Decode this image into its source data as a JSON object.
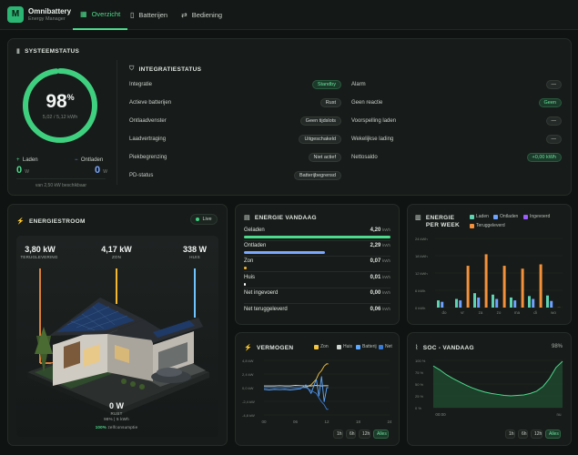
{
  "app": {
    "title": "Omnibattery",
    "subtitle": "Energy Manager",
    "logo_letter": "M"
  },
  "tabs": [
    {
      "label": "Overzicht",
      "icon": "grid-icon",
      "active": true
    },
    {
      "label": "Batterijen",
      "icon": "battery-icon",
      "active": false
    },
    {
      "label": "Bediening",
      "icon": "sliders-icon",
      "active": false
    }
  ],
  "system": {
    "title": "SYSTEEMSTATUS",
    "percent": "98",
    "percent_unit": "%",
    "soc_fraction": 0.98,
    "kwh": "5,02 / 5,12 kWh",
    "charge_label": "Laden",
    "charge_value": "0",
    "charge_unit": "W",
    "discharge_label": "Ontladen",
    "discharge_value": "0",
    "discharge_unit": "W",
    "limit_text": "van 2,50 kW beschikbaar",
    "integration_title": "INTEGRATIESTATUS",
    "left_rows": [
      {
        "label": "Integratie",
        "value": "Standby",
        "style": "green"
      },
      {
        "label": "Actieve batterijen",
        "value": "Rust",
        "style": "grey"
      },
      {
        "label": "Ontlaadvenster",
        "value": "Geen tijdslots",
        "style": "grey"
      },
      {
        "label": "Laadvertraging",
        "value": "Uitgeschakeld",
        "style": "grey"
      },
      {
        "label": "Piekbegrenzing",
        "value": "Niet actief",
        "style": "grey"
      },
      {
        "label": "PD-status",
        "value": "Batterijbegrensd",
        "style": "grey"
      }
    ],
    "right_rows": [
      {
        "label": "Alarm",
        "value": "—",
        "style": "grey"
      },
      {
        "label": "Geen reactie",
        "value": "Geen",
        "style": "green"
      },
      {
        "label": "Voorspelling laden",
        "value": "—",
        "style": "grey"
      },
      {
        "label": "Wekelijkse lading",
        "value": "—",
        "style": "grey"
      },
      {
        "label": "Nettosaldo",
        "value": "+0,00 kWh",
        "style": "green"
      }
    ]
  },
  "flow": {
    "title": "ENERGIESTROOM",
    "live": "Live",
    "grid_value": "3,80 kW",
    "grid_label": "TERUGLEVERING",
    "solar_value": "4,17 kW",
    "solar_label": "ZON",
    "house_value": "338 W",
    "house_label": "HUIS",
    "battery_value": "0 W",
    "battery_label": "RUST",
    "battery_sub": "98% | 5 kWh",
    "self_pct": "100%",
    "self_text": "zelfconsumptie"
  },
  "energy_today": {
    "title": "ENERGIE VANDAAG",
    "rows": [
      {
        "label": "Geladen",
        "value": "4,20",
        "unit": "kWh",
        "fill": 1.0,
        "color": "#4cdb8c"
      },
      {
        "label": "Ontladen",
        "value": "2,29",
        "unit": "kWh",
        "fill": 0.55,
        "color": "#7ba7ff"
      },
      {
        "label": "Zon",
        "value": "0,07",
        "unit": "kWh",
        "fill": 0.02,
        "color": "#f5b731"
      },
      {
        "label": "Huis",
        "value": "0,01",
        "unit": "kWh",
        "fill": 0.01,
        "color": "#ffffff"
      },
      {
        "label": "Net ingevoerd",
        "value": "0,00",
        "unit": "kWh",
        "fill": 0,
        "color": "#a66bff"
      },
      {
        "label": "Net teruggeleverd",
        "value": "0,06",
        "unit": "kWh",
        "fill": 0,
        "color": "#f08a3c"
      }
    ]
  },
  "week": {
    "title": "ENERGIE PER WEEK",
    "legend": [
      {
        "label": "Laden",
        "color": "#5fd3b0"
      },
      {
        "label": "Ontladen",
        "color": "#6fa2ff"
      },
      {
        "label": "Ingevoerd",
        "color": "#9b5cff"
      },
      {
        "label": "Teruggeleverd",
        "color": "#f5913a"
      }
    ],
    "yticks": [
      "24 kWh",
      "18 kWh",
      "12 kWh",
      "6 kWh",
      "0 kWh"
    ]
  },
  "power": {
    "title": "VERMOGEN",
    "legend": [
      {
        "label": "Zon",
        "color": "#f5c542"
      },
      {
        "label": "Huis",
        "color": "#cfd6d2"
      },
      {
        "label": "Batterij",
        "color": "#5fa8ff"
      },
      {
        "label": "Net",
        "color": "#3a7bd5"
      }
    ],
    "yticks": [
      "4,8 kW",
      "2,4 kW",
      "0,0 kW",
      "-2,4 kW",
      "-4,8 kW"
    ],
    "xticks": [
      "00",
      "06",
      "12",
      "18",
      "24"
    ],
    "ranges": [
      "1h",
      "6h",
      "12h",
      "Alles"
    ],
    "active_range": "Alles"
  },
  "soc": {
    "title": "SOC - VANDAAG",
    "current": "98%",
    "yticks": [
      "100 %",
      "75 %",
      "50 %",
      "25 %",
      "0 %"
    ],
    "xticks": [
      "00:00",
      "nu"
    ],
    "ranges": [
      "1h",
      "6h",
      "12h",
      "Alles"
    ],
    "active_range": "Alles"
  },
  "chart_data": [
    {
      "type": "bar",
      "title": "ENERGIE PER WEEK",
      "categories": [
        "do",
        "vr",
        "za",
        "zo",
        "ma",
        "di",
        "wo"
      ],
      "ylim": [
        0,
        24
      ],
      "series": [
        {
          "name": "Laden",
          "values": [
            2.5,
            3.0,
            5.0,
            4.5,
            3.5,
            4.0,
            4.2
          ]
        },
        {
          "name": "Ontladen",
          "values": [
            2.0,
            2.5,
            3.5,
            3.0,
            2.5,
            3.0,
            2.3
          ]
        },
        {
          "name": "Ingevoerd",
          "values": [
            0.0,
            0.0,
            0.0,
            0.0,
            0.0,
            0.0,
            0.0
          ]
        },
        {
          "name": "Teruggeleverd",
          "values": [
            0.0,
            14.5,
            18.5,
            14.5,
            13.5,
            15.0,
            0.06
          ]
        }
      ]
    },
    {
      "type": "line",
      "title": "VERMOGEN",
      "x": [
        0,
        1,
        2,
        3,
        4,
        5,
        6,
        7,
        8,
        9,
        10,
        10.5,
        11,
        11.5,
        12,
        12.3
      ],
      "ylim": [
        -4.8,
        4.8
      ],
      "series": [
        {
          "name": "Zon",
          "values": [
            0,
            0,
            0,
            0,
            0,
            0,
            0,
            0,
            0.1,
            0.5,
            1.5,
            2.5,
            3.0,
            3.8,
            4.2,
            4.17
          ]
        },
        {
          "name": "Huis",
          "values": [
            0.3,
            0.3,
            0.3,
            0.35,
            0.3,
            0.3,
            0.4,
            0.35,
            0.3,
            0.3,
            0.4,
            0.35,
            0.3,
            0.35,
            0.34,
            0.34
          ]
        },
        {
          "name": "Batterij",
          "values": [
            -0.3,
            -0.4,
            -0.3,
            -0.35,
            -0.3,
            -0.4,
            -0.3,
            -0.2,
            0.5,
            -1.0,
            1.5,
            -1.5,
            2.0,
            -2.5,
            0,
            0
          ]
        },
        {
          "name": "Net",
          "values": [
            0,
            0,
            0,
            0,
            0,
            0,
            0,
            0,
            0,
            -0.5,
            -1.0,
            -1.8,
            -2.5,
            -3.0,
            -3.8,
            -3.8
          ]
        }
      ]
    },
    {
      "type": "area",
      "title": "SOC - VANDAAG",
      "x": [
        0,
        1,
        2,
        3,
        4,
        5,
        6,
        7,
        8,
        9,
        10,
        11,
        12,
        13,
        14,
        15,
        16,
        17,
        18,
        19,
        20
      ],
      "ylim": [
        0,
        100
      ],
      "series": [
        {
          "name": "SOC",
          "values": [
            88,
            80,
            70,
            62,
            55,
            48,
            42,
            37,
            33,
            30,
            28,
            26,
            25,
            26,
            27,
            30,
            35,
            45,
            62,
            85,
            98
          ]
        }
      ]
    }
  ]
}
